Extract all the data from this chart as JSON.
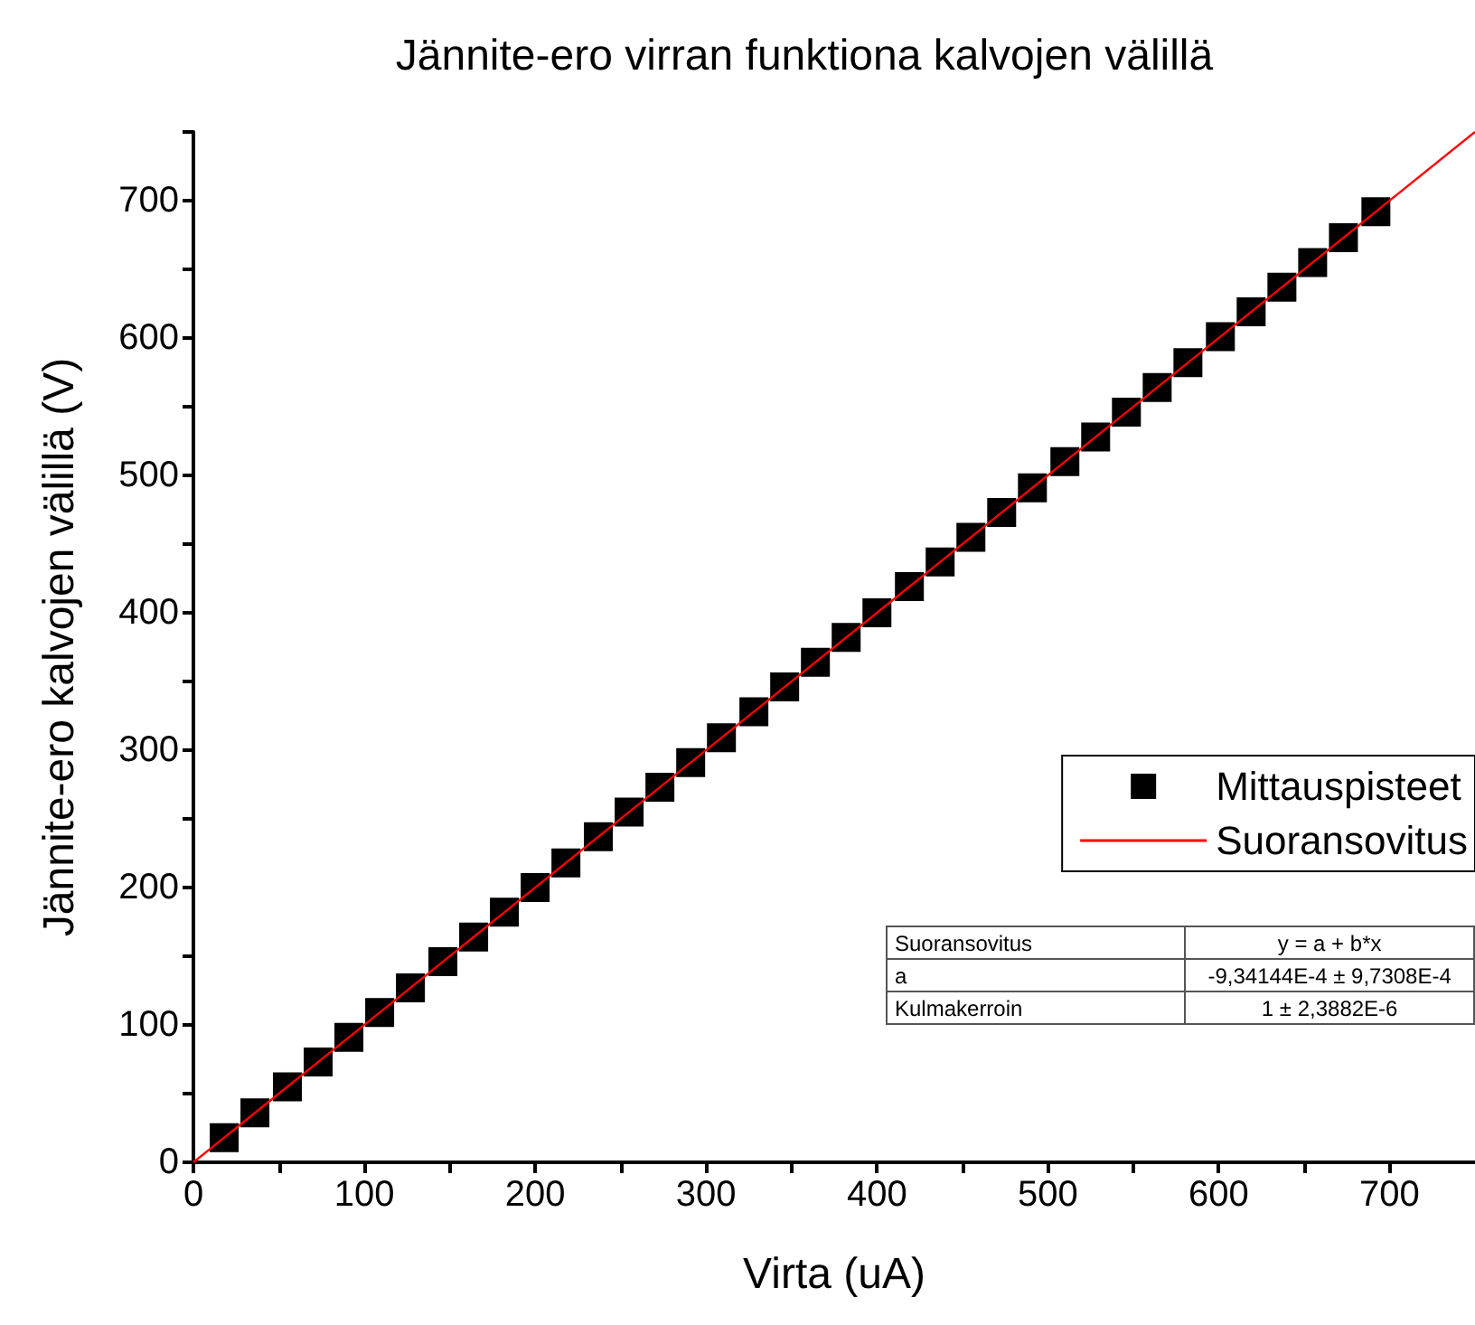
{
  "chart_data": {
    "type": "scatter",
    "title": "Jännite-ero virran funktiona kalvojen välillä",
    "xlabel": "Virta (uA)",
    "ylabel": "Jännite-ero kalvojen välillä (V)",
    "series": [
      {
        "name": "Mittauspisteet",
        "type": "scatter",
        "color": "#000000",
        "marker": "square",
        "x": [
          18,
          36,
          55,
          73,
          91,
          109,
          127,
          146,
          164,
          182,
          200,
          218,
          237,
          255,
          273,
          291,
          309,
          328,
          346,
          364,
          382,
          400,
          419,
          437,
          455,
          473,
          491,
          510,
          528,
          546,
          564,
          582,
          601,
          619,
          637,
          655,
          673,
          692
        ],
        "values": [
          18,
          36,
          55,
          73,
          91,
          109,
          127,
          146,
          164,
          182,
          200,
          218,
          237,
          255,
          273,
          291,
          309,
          328,
          346,
          364,
          382,
          400,
          419,
          437,
          455,
          473,
          491,
          510,
          528,
          546,
          564,
          582,
          601,
          619,
          637,
          655,
          673,
          692
        ]
      },
      {
        "name": "Suoransovitus",
        "type": "line",
        "color": "#ff0000",
        "marker": "none",
        "line_style": "solid",
        "x": [
          0,
          750
        ],
        "values": [
          0,
          750
        ]
      }
    ],
    "xlim": [
      0,
      750
    ],
    "ylim": [
      0,
      750
    ],
    "xticks": [
      0,
      {
        "value": 50,
        "label": null
      },
      100,
      {
        "value": 150,
        "label": null
      },
      200,
      {
        "value": 250,
        "label": null
      },
      300,
      {
        "value": 350,
        "label": null
      },
      400,
      {
        "value": 450,
        "label": null
      },
      500,
      {
        "value": 550,
        "label": null
      },
      600,
      {
        "value": 650,
        "label": null
      },
      700
    ],
    "yticks": [
      0,
      {
        "value": 50,
        "label": null
      },
      100,
      {
        "value": 150,
        "label": null
      },
      200,
      {
        "value": 250,
        "label": null
      },
      300,
      {
        "value": 350,
        "label": null
      },
      400,
      {
        "value": 450,
        "label": null
      },
      500,
      {
        "value": 550,
        "label": null
      },
      600,
      {
        "value": 650,
        "label": null
      },
      700,
      {
        "value": 750,
        "label": null
      }
    ],
    "grid": false,
    "legend": "right",
    "annotations": [
      "Suoransovitus",
      "y = a + b*x",
      "a",
      "-9,34144E-4 ± 9,7308E-4",
      "Kulmakerroin",
      "1 ± 2,3882E-6"
    ]
  }
}
